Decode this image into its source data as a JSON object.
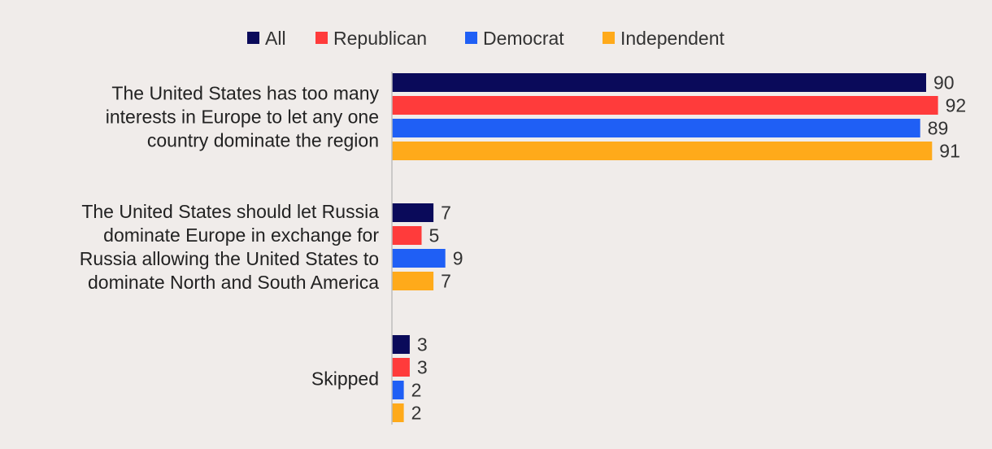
{
  "chart_data": {
    "type": "bar",
    "orientation": "horizontal",
    "categories": [
      "The United States has too many interests in Europe to let any one country dominate the region",
      "The United States should let Russia dominate Europe in exchange for Russia allowing the United States to dominate North and South America",
      "Skipped"
    ],
    "category_lines": [
      [
        "The United States has too many",
        "interests in Europe to let any one",
        "country dominate the region"
      ],
      [
        "The United States should let Russia",
        "dominate Europe in exchange for",
        "Russia allowing the United States to",
        "dominate North and South America"
      ],
      [
        "Skipped"
      ]
    ],
    "series": [
      {
        "name": "All",
        "color": "#0a0a5a",
        "values": [
          90,
          7,
          3
        ]
      },
      {
        "name": "Republican",
        "color": "#ff3b3b",
        "values": [
          92,
          5,
          3
        ]
      },
      {
        "name": "Democrat",
        "color": "#1f5ff5",
        "values": [
          89,
          9,
          2
        ]
      },
      {
        "name": "Independent",
        "color": "#ffaa1a",
        "values": [
          91,
          7,
          2
        ]
      }
    ],
    "xlim": [
      0,
      100
    ],
    "grid": false,
    "legend_position": "top-center",
    "data_labels": true
  }
}
